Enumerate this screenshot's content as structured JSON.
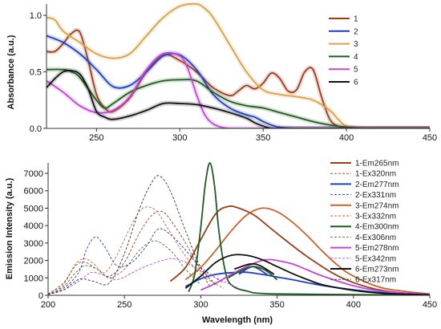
{
  "chart_data": [
    {
      "type": "line",
      "title": "",
      "xlabel": "",
      "ylabel": "Absorbance (a.u.)",
      "xlim": [
        220,
        450
      ],
      "ylim": [
        0,
        1.1
      ],
      "x_ticks": [
        250,
        300,
        350,
        400,
        450
      ],
      "y_ticks": [
        0.0,
        0.5,
        1.0
      ],
      "legend_position": "right",
      "series": [
        {
          "name": "1",
          "color": "#9c3d1a",
          "smooth": true,
          "x": [
            220,
            225,
            230,
            235,
            240,
            245,
            250,
            255,
            260,
            270,
            280,
            290,
            300,
            310,
            320,
            330,
            335,
            340,
            345,
            350,
            355,
            360,
            365,
            370,
            375,
            380,
            385,
            390,
            395,
            400,
            410,
            420,
            450
          ],
          "y": [
            0.68,
            0.68,
            0.75,
            0.84,
            0.85,
            0.6,
            0.3,
            0.18,
            0.15,
            0.27,
            0.5,
            0.65,
            0.6,
            0.5,
            0.36,
            0.29,
            0.33,
            0.38,
            0.35,
            0.4,
            0.49,
            0.44,
            0.33,
            0.34,
            0.5,
            0.52,
            0.28,
            0.08,
            0.02,
            0.01,
            0.0,
            0.0,
            0.0
          ]
        },
        {
          "name": "2",
          "color": "#1e3fc4",
          "smooth": true,
          "x": [
            220,
            230,
            240,
            250,
            260,
            270,
            280,
            290,
            300,
            310,
            320,
            330,
            340,
            345,
            350,
            355,
            360,
            370,
            380,
            450
          ],
          "y": [
            0.82,
            0.76,
            0.66,
            0.52,
            0.37,
            0.38,
            0.5,
            0.64,
            0.65,
            0.52,
            0.3,
            0.18,
            0.12,
            0.1,
            0.06,
            0.03,
            0.01,
            0.0,
            0.0,
            0.0
          ]
        },
        {
          "name": "3",
          "color": "#d9a24a",
          "smooth": true,
          "x": [
            220,
            225,
            230,
            240,
            250,
            260,
            270,
            280,
            290,
            300,
            310,
            315,
            320,
            330,
            340,
            350,
            360,
            370,
            380,
            390,
            395,
            400,
            410,
            420,
            450
          ],
          "y": [
            0.98,
            0.96,
            0.86,
            0.76,
            0.66,
            0.62,
            0.66,
            0.82,
            0.98,
            1.08,
            1.1,
            1.06,
            0.98,
            0.74,
            0.5,
            0.34,
            0.3,
            0.28,
            0.25,
            0.16,
            0.08,
            0.02,
            0.0,
            0.0,
            0.0
          ]
        },
        {
          "name": "4",
          "color": "#1f5c1f",
          "smooth": true,
          "x": [
            220,
            230,
            235,
            240,
            250,
            255,
            260,
            270,
            280,
            290,
            300,
            310,
            320,
            330,
            340,
            350,
            360,
            370,
            380,
            390,
            400,
            410,
            420,
            450
          ],
          "y": [
            0.52,
            0.52,
            0.5,
            0.45,
            0.25,
            0.18,
            0.22,
            0.32,
            0.38,
            0.42,
            0.43,
            0.42,
            0.32,
            0.24,
            0.2,
            0.18,
            0.14,
            0.1,
            0.06,
            0.03,
            0.01,
            0.0,
            0.0,
            0.0
          ]
        },
        {
          "name": "5",
          "color": "#c247d6",
          "smooth": true,
          "x": [
            220,
            230,
            240,
            250,
            260,
            270,
            280,
            290,
            300,
            305,
            310,
            315,
            320,
            325,
            330,
            340,
            350,
            450
          ],
          "y": [
            0.42,
            0.32,
            0.2,
            0.14,
            0.16,
            0.28,
            0.52,
            0.66,
            0.64,
            0.52,
            0.3,
            0.12,
            0.04,
            0.01,
            0.0,
            0.0,
            0.0,
            0.0
          ]
        },
        {
          "name": "6",
          "color": "#111111",
          "smooth": true,
          "x": [
            220,
            225,
            230,
            235,
            240,
            245,
            250,
            255,
            260,
            270,
            280,
            290,
            300,
            310,
            320,
            330,
            340,
            345,
            350,
            355,
            360,
            450
          ],
          "y": [
            0.36,
            0.44,
            0.5,
            0.51,
            0.48,
            0.35,
            0.15,
            0.1,
            0.08,
            0.11,
            0.16,
            0.22,
            0.22,
            0.21,
            0.18,
            0.14,
            0.09,
            0.05,
            0.02,
            0.0,
            0.0,
            0.0
          ]
        }
      ]
    },
    {
      "type": "line",
      "title": "",
      "xlabel": "Wavelength (nm)",
      "ylabel": "Emission Intensity (a.u.)",
      "xlim": [
        200,
        450
      ],
      "ylim": [
        0,
        7600
      ],
      "x_ticks": [
        200,
        250,
        300,
        350,
        400,
        450
      ],
      "y_ticks": [
        0,
        1000,
        2000,
        3000,
        4000,
        5000,
        6000,
        7000
      ],
      "legend_position": "right",
      "series": [
        {
          "name": "1-Em265nm",
          "color": "#9c3d1a",
          "dashed": false,
          "smooth": true,
          "x": [
            280,
            290,
            300,
            310,
            318,
            325,
            335,
            345,
            355,
            370,
            390,
            410,
            430,
            450
          ],
          "y": [
            800,
            1600,
            3200,
            4700,
            5100,
            5000,
            4600,
            3900,
            3200,
            2200,
            1100,
            450,
            150,
            50
          ]
        },
        {
          "name": "1-Ex320nm",
          "color": "#9c3d1a",
          "dashed": true,
          "smooth": true,
          "x": [
            200,
            210,
            218,
            224,
            232,
            240,
            250,
            260,
            268,
            275,
            282,
            290,
            300,
            306
          ],
          "y": [
            80,
            700,
            1700,
            1900,
            1500,
            1100,
            1900,
            3600,
            4600,
            4800,
            4100,
            3000,
            1400,
            500
          ]
        },
        {
          "name": "2-Em277nm",
          "color": "#1e3fc4",
          "dashed": false,
          "smooth": true,
          "x": [
            290,
            300,
            310,
            320,
            330,
            340,
            350,
            360,
            370,
            380,
            400,
            420,
            450
          ],
          "y": [
            500,
            950,
            1200,
            1300,
            1320,
            1200,
            1050,
            900,
            720,
            560,
            320,
            150,
            50
          ]
        },
        {
          "name": "2-Ex331nm",
          "color": "#1e3fc4",
          "dashed": true,
          "smooth": true,
          "x": [
            200,
            210,
            220,
            225,
            231,
            237,
            245,
            255,
            265,
            272,
            280,
            290,
            300,
            315
          ],
          "y": [
            50,
            400,
            1300,
            2600,
            3350,
            2800,
            1700,
            1900,
            2900,
            3800,
            3500,
            2600,
            1600,
            700
          ]
        },
        {
          "name": "3-Em274nm",
          "color": "#c8652a",
          "dashed": false,
          "smooth": true,
          "x": [
            290,
            300,
            310,
            320,
            330,
            340,
            350,
            360,
            370,
            380,
            390,
            400,
            420,
            450
          ],
          "y": [
            900,
            1600,
            2600,
            3700,
            4600,
            5000,
            4800,
            4200,
            3400,
            2500,
            1700,
            1100,
            400,
            80
          ]
        },
        {
          "name": "3-Ex332nm",
          "color": "#c8652a",
          "dashed": true,
          "smooth": true,
          "x": [
            200,
            210,
            218,
            224,
            230,
            237,
            245,
            255,
            262,
            270,
            278,
            288,
            300,
            315
          ],
          "y": [
            50,
            600,
            1800,
            2100,
            1800,
            1300,
            2300,
            4100,
            5000,
            4900,
            3900,
            2500,
            1200,
            400
          ]
        },
        {
          "name": "4-Em300nm",
          "color": "#1f5c1f",
          "dashed": false,
          "smooth": true,
          "x": [
            292,
            296,
            300,
            303,
            306,
            309,
            312,
            316,
            320,
            330,
            350,
            450
          ],
          "y": [
            200,
            1200,
            3900,
            6400,
            7600,
            6300,
            3600,
            1400,
            600,
            250,
            80,
            20
          ]
        },
        {
          "name": "4-Ex306nm",
          "color": "#4f6e48",
          "dashed": true,
          "smooth": true,
          "x": [
            200,
            210,
            218,
            224,
            232,
            240,
            250,
            260,
            268,
            274,
            282,
            290,
            300
          ],
          "y": [
            50,
            500,
            1300,
            1700,
            1500,
            1000,
            1500,
            2600,
            3100,
            3000,
            2400,
            1500,
            600
          ]
        },
        {
          "name": "5-Em278nm",
          "color": "#c247d6",
          "dashed": false,
          "smooth": true,
          "x": [
            300,
            310,
            320,
            330,
            340,
            345,
            350,
            360,
            370,
            380,
            400,
            420,
            450
          ],
          "y": [
            300,
            700,
            1200,
            1650,
            2000,
            2050,
            2000,
            1800,
            1450,
            1100,
            550,
            220,
            60
          ]
        },
        {
          "name": "5-Ex342nm",
          "color": "#c247d6",
          "dashed": true,
          "smooth": true,
          "x": [
            200,
            210,
            220,
            228,
            235,
            245,
            255,
            265,
            275,
            282,
            290,
            300,
            315,
            325
          ],
          "y": [
            50,
            300,
            800,
            1300,
            1200,
            900,
            1300,
            1700,
            2000,
            2100,
            1900,
            1400,
            800,
            400
          ]
        },
        {
          "name": "6-Em273nm",
          "color": "#111111",
          "dashed": false,
          "smooth": true,
          "x": [
            290,
            300,
            310,
            320,
            330,
            340,
            350,
            360,
            370,
            380,
            400,
            420,
            450
          ],
          "y": [
            400,
            1100,
            1900,
            2300,
            2300,
            2050,
            1650,
            1250,
            900,
            600,
            280,
            110,
            30
          ]
        },
        {
          "name": "6-Ex317nm",
          "color": "#333333",
          "dashed": true,
          "smooth": true,
          "x": [
            200,
            210,
            216,
            222,
            230,
            240,
            250,
            260,
            268,
            273,
            280,
            290,
            300,
            310
          ],
          "y": [
            50,
            300,
            700,
            950,
            800,
            700,
            2400,
            5000,
            6500,
            6850,
            6000,
            3700,
            1600,
            600
          ]
        }
      ],
      "extra_peaks": [
        {
          "name": "2-Em277nm",
          "color": "#1e3fc4",
          "x": [
            325,
            330,
            334,
            338,
            344
          ],
          "y": [
            1200,
            1500,
            1650,
            1500,
            1150
          ]
        },
        {
          "name": "4-Em300nm",
          "color": "#1f5c1f",
          "x": [
            318,
            326,
            334,
            342,
            350
          ],
          "y": [
            1000,
            1400,
            1650,
            1450,
            900
          ]
        },
        {
          "name": "6-Em273nm",
          "color": "#111111",
          "x": [
            322,
            330,
            335,
            340,
            348
          ],
          "y": [
            1500,
            1750,
            1800,
            1650,
            1200
          ]
        }
      ]
    }
  ]
}
